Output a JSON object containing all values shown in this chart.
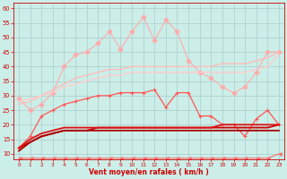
{
  "xlabel": "Vent moyen/en rafales ( km/h )",
  "background_color": "#cceee8",
  "grid_color": "#aacccc",
  "xlim": [
    -0.5,
    23.5
  ],
  "ylim": [
    8,
    62
  ],
  "yticks": [
    10,
    15,
    20,
    25,
    30,
    35,
    40,
    45,
    50,
    55,
    60
  ],
  "xticks": [
    0,
    1,
    2,
    3,
    4,
    5,
    6,
    7,
    8,
    9,
    10,
    11,
    12,
    13,
    14,
    15,
    16,
    17,
    18,
    19,
    20,
    21,
    22,
    23
  ],
  "x": [
    0,
    1,
    2,
    3,
    4,
    5,
    6,
    7,
    8,
    9,
    10,
    11,
    12,
    13,
    14,
    15,
    16,
    17,
    18,
    19,
    20,
    21,
    22,
    23
  ],
  "series": [
    {
      "y": [
        29,
        25,
        27,
        31,
        40,
        44,
        45,
        48,
        52,
        46,
        52,
        57,
        49,
        56,
        52,
        42,
        38,
        36,
        33,
        31,
        33,
        38,
        45,
        45
      ],
      "color": "#ffaaaa",
      "linewidth": 0.8,
      "marker": "D",
      "markersize": 2.5,
      "linestyle": "-"
    },
    {
      "y": [
        27,
        28,
        30,
        32,
        34,
        36,
        37,
        38,
        39,
        39,
        40,
        40,
        40,
        40,
        40,
        40,
        40,
        40,
        41,
        41,
        41,
        42,
        43,
        45
      ],
      "color": "#ffbbbb",
      "linewidth": 1.0,
      "marker": null,
      "markersize": 0,
      "linestyle": "-"
    },
    {
      "y": [
        28,
        29,
        30,
        31,
        33,
        34,
        35,
        36,
        37,
        37,
        38,
        38,
        38,
        38,
        38,
        38,
        38,
        38,
        38,
        38,
        38,
        39,
        40,
        44
      ],
      "color": "#ffcccc",
      "linewidth": 1.0,
      "marker": null,
      "markersize": 0,
      "linestyle": "-"
    },
    {
      "y": [
        12,
        16,
        23,
        25,
        27,
        28,
        29,
        30,
        30,
        31,
        31,
        31,
        32,
        26,
        31,
        31,
        23,
        23,
        20,
        20,
        16,
        22,
        25,
        20
      ],
      "color": "#ff5555",
      "linewidth": 0.9,
      "marker": "+",
      "markersize": 3.5,
      "linestyle": "-"
    },
    {
      "y": [
        12,
        14,
        16,
        17,
        18,
        18,
        18,
        19,
        19,
        19,
        19,
        19,
        19,
        19,
        19,
        19,
        19,
        19,
        19,
        19,
        19,
        19,
        19,
        20
      ],
      "color": "#cc0000",
      "linewidth": 1.3,
      "marker": null,
      "markersize": 0,
      "linestyle": "-"
    },
    {
      "y": [
        11,
        14,
        16,
        17,
        18,
        18,
        18,
        18,
        18,
        18,
        18,
        18,
        18,
        18,
        18,
        18,
        18,
        18,
        18,
        18,
        18,
        18,
        18,
        18
      ],
      "color": "#aa0000",
      "linewidth": 1.3,
      "marker": null,
      "markersize": 0,
      "linestyle": "-"
    },
    {
      "y": [
        12,
        15,
        17,
        18,
        19,
        19,
        19,
        19,
        19,
        19,
        19,
        19,
        19,
        19,
        19,
        19,
        19,
        19,
        20,
        20,
        20,
        20,
        20,
        20
      ],
      "color": "#dd1111",
      "linewidth": 1.3,
      "marker": null,
      "markersize": 0,
      "linestyle": "-"
    },
    {
      "y": [
        8.5,
        8.5,
        8.5,
        8.5,
        8.5,
        8.5,
        8.5,
        8.5,
        8.5,
        8.5,
        8.5,
        8.5,
        8.5,
        8.5,
        8.5,
        8.5,
        8.5,
        8.5,
        8.5,
        8.5,
        8.5,
        8.5,
        8.5,
        10
      ],
      "color": "#ff6666",
      "linewidth": 0.8,
      "marker": 4,
      "markersize": 3,
      "linestyle": "-"
    }
  ]
}
